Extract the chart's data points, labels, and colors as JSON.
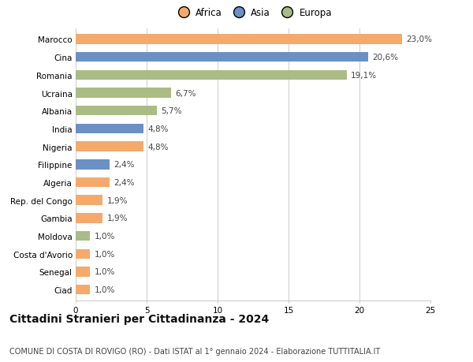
{
  "categories": [
    "Marocco",
    "Cina",
    "Romania",
    "Ucraina",
    "Albania",
    "India",
    "Nigeria",
    "Filippine",
    "Algeria",
    "Rep. del Congo",
    "Gambia",
    "Moldova",
    "Costa d'Avorio",
    "Senegal",
    "Ciad"
  ],
  "values": [
    23.0,
    20.6,
    19.1,
    6.7,
    5.7,
    4.8,
    4.8,
    2.4,
    2.4,
    1.9,
    1.9,
    1.0,
    1.0,
    1.0,
    1.0
  ],
  "labels": [
    "23,0%",
    "20,6%",
    "19,1%",
    "6,7%",
    "5,7%",
    "4,8%",
    "4,8%",
    "2,4%",
    "2,4%",
    "1,9%",
    "1,9%",
    "1,0%",
    "1,0%",
    "1,0%",
    "1,0%"
  ],
  "continents": [
    "Africa",
    "Asia",
    "Europa",
    "Europa",
    "Europa",
    "Asia",
    "Africa",
    "Asia",
    "Africa",
    "Africa",
    "Africa",
    "Europa",
    "Africa",
    "Africa",
    "Africa"
  ],
  "colors": {
    "Africa": "#F5A96B",
    "Asia": "#6B90C4",
    "Europa": "#AABB84"
  },
  "legend_labels": [
    "Africa",
    "Asia",
    "Europa"
  ],
  "legend_colors": [
    "#F5A96B",
    "#6B90C4",
    "#AABB84"
  ],
  "title": "Cittadini Stranieri per Cittadinanza - 2024",
  "subtitle": "COMUNE DI COSTA DI ROVIGO (RO) - Dati ISTAT al 1° gennaio 2024 - Elaborazione TUTTITALIA.IT",
  "xlim": [
    0,
    25
  ],
  "xticks": [
    0,
    5,
    10,
    15,
    20,
    25
  ],
  "background_color": "#ffffff",
  "grid_color": "#cccccc",
  "bar_height": 0.55,
  "label_fontsize": 7.5,
  "title_fontsize": 10,
  "subtitle_fontsize": 7,
  "tick_fontsize": 7.5,
  "legend_fontsize": 8.5
}
